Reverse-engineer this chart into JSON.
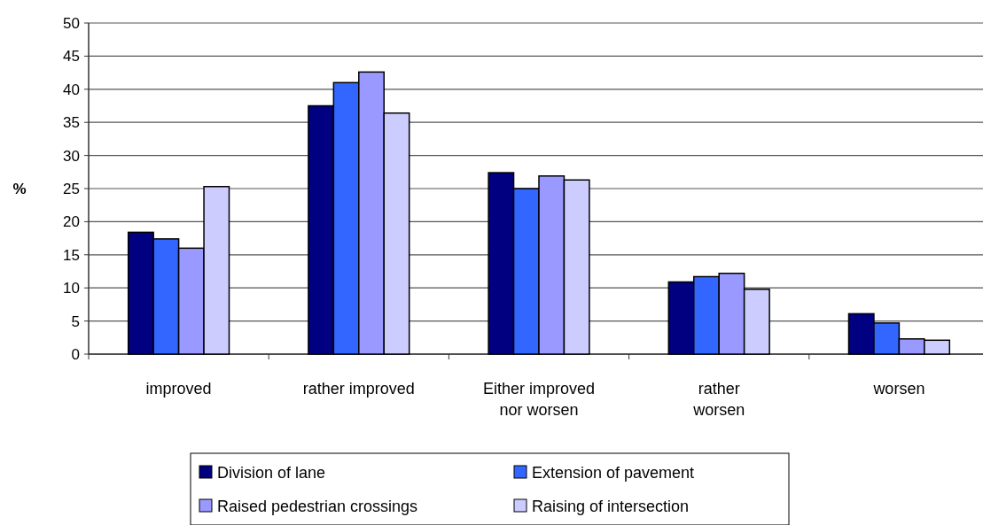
{
  "chart_data": {
    "type": "bar",
    "ylabel": "%",
    "categories": [
      "improved",
      "rather improved",
      "Either improved\nnor worsen",
      "rather\nworsen",
      "worsen"
    ],
    "series": [
      {
        "name": "Division of lane",
        "color": "#000080",
        "values": [
          18.4,
          37.5,
          27.4,
          10.9,
          6.1
        ]
      },
      {
        "name": "Extension of pavement",
        "color": "#3366ff",
        "values": [
          17.4,
          41,
          25,
          11.7,
          4.7
        ]
      },
      {
        "name": "Raised pedestrian crossings",
        "color": "#9999ff",
        "values": [
          16,
          42.6,
          26.9,
          12.2,
          2.3
        ]
      },
      {
        "name": "Raising of intersection",
        "color": "#ccccff",
        "values": [
          25.3,
          36.4,
          26.3,
          9.8,
          2.1
        ]
      }
    ],
    "ylim": [
      0,
      50
    ],
    "yticks": [
      0,
      5,
      10,
      15,
      20,
      25,
      30,
      35,
      40,
      45,
      50
    ],
    "grid": "y",
    "legend": "bottom"
  }
}
